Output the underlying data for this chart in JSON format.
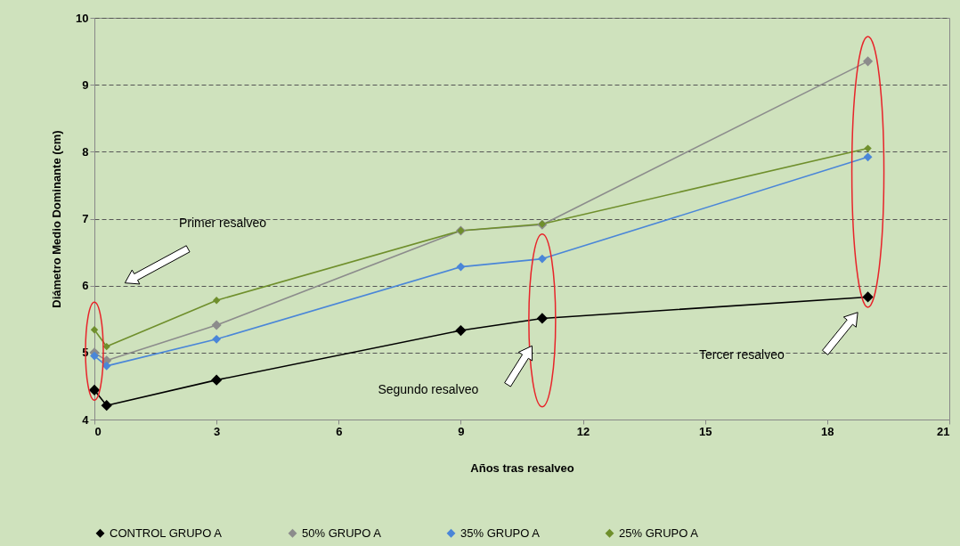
{
  "chart_data": {
    "type": "line",
    "xlabel": "Años tras resalveo",
    "ylabel": "Diámetro Medio Dominante (cm)",
    "x": [
      0,
      0.3,
      3,
      9,
      11,
      19
    ],
    "series": [
      {
        "name": "CONTROL GRUPO A",
        "color": "#000000",
        "values": [
          4.44,
          4.21,
          4.59,
          5.33,
          5.51,
          5.83
        ]
      },
      {
        "name": "50% GRUPO A",
        "color": "#8c8c8c",
        "values": [
          5.0,
          4.88,
          5.41,
          6.82,
          6.91,
          9.35
        ]
      },
      {
        "name": "35% GRUPO A",
        "color": "#4a86d8",
        "values": [
          4.95,
          4.8,
          5.2,
          6.28,
          6.4,
          7.92
        ]
      },
      {
        "name": "25% GRUPO A",
        "color": "#6f8f2c",
        "values": [
          5.34,
          5.09,
          5.78,
          6.82,
          6.92,
          8.05
        ]
      }
    ],
    "xlim": [
      0,
      21
    ],
    "xticks": [
      0,
      3,
      6,
      9,
      12,
      15,
      18,
      21
    ],
    "ylim": [
      4,
      10
    ],
    "yticks": [
      4,
      5,
      6,
      7,
      8,
      9,
      10
    ],
    "grid": "y",
    "legend": "bottom",
    "marker": "diamond",
    "line_style": "solid",
    "annotations": [
      "Primer resalveo",
      "Segundo  resalveo",
      "Tercer resalveo"
    ]
  }
}
